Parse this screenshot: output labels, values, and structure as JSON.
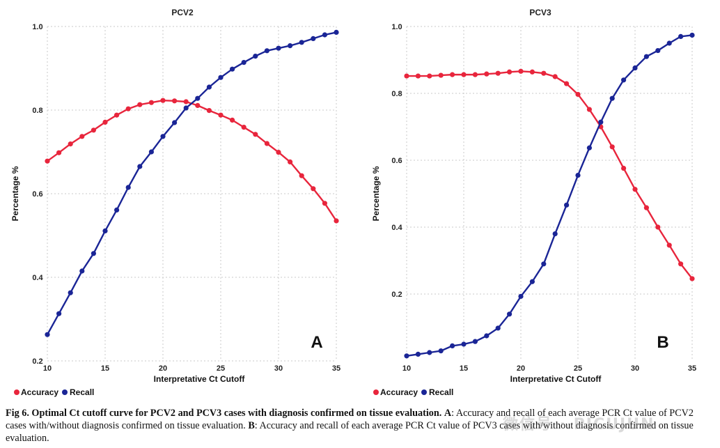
{
  "colors": {
    "accuracy": "#e8253c",
    "recall": "#1a2596"
  },
  "chart_data": [
    {
      "type": "line",
      "panel": "A",
      "title": "PCV2",
      "xlabel": "Interpretative Ct Cutoff",
      "ylabel": "Percentage %",
      "xlim": [
        10,
        35
      ],
      "ylim": [
        0.2,
        1.0
      ],
      "xticks": [
        10,
        15,
        20,
        25,
        30,
        35
      ],
      "yticks": [
        0.2,
        0.4,
        0.6,
        0.8,
        1.0
      ],
      "ytick_labels": [
        "0.2",
        "0.4",
        "0.6",
        "0.8",
        "1.0"
      ],
      "x": [
        10,
        11,
        12,
        13,
        14,
        15,
        16,
        17,
        18,
        19,
        20,
        21,
        22,
        23,
        24,
        25,
        26,
        27,
        28,
        29,
        30,
        31,
        32,
        33,
        34,
        35
      ],
      "series": [
        {
          "name": "Accuracy",
          "values": [
            0.678,
            0.698,
            0.719,
            0.737,
            0.752,
            0.771,
            0.788,
            0.803,
            0.813,
            0.818,
            0.823,
            0.822,
            0.82,
            0.811,
            0.799,
            0.788,
            0.776,
            0.759,
            0.742,
            0.72,
            0.699,
            0.676,
            0.643,
            0.612,
            0.577,
            0.535
          ]
        },
        {
          "name": "Recall",
          "values": [
            0.263,
            0.313,
            0.363,
            0.415,
            0.457,
            0.511,
            0.561,
            0.615,
            0.665,
            0.7,
            0.737,
            0.77,
            0.805,
            0.828,
            0.855,
            0.878,
            0.898,
            0.914,
            0.929,
            0.942,
            0.948,
            0.954,
            0.962,
            0.971,
            0.98,
            0.986
          ]
        }
      ],
      "legend": [
        "Accuracy",
        "Recall"
      ],
      "legend_position": "bottom-left"
    },
    {
      "type": "line",
      "panel": "B",
      "title": "PCV3",
      "xlabel": "Interpretative Ct Cutoff",
      "ylabel": "Percentage %",
      "xlim": [
        10,
        35
      ],
      "ylim": [
        0.0,
        1.0
      ],
      "xticks": [
        10,
        15,
        20,
        25,
        30,
        35
      ],
      "yticks": [
        0.2,
        0.4,
        0.6,
        0.8,
        1.0
      ],
      "ytick_labels": [
        "0.2",
        "0.4",
        "0.6",
        "0.8",
        "1.0"
      ],
      "x": [
        10,
        11,
        12,
        13,
        14,
        15,
        16,
        17,
        18,
        19,
        20,
        21,
        22,
        23,
        24,
        25,
        26,
        27,
        28,
        29,
        30,
        31,
        32,
        33,
        34,
        35
      ],
      "series": [
        {
          "name": "Accuracy",
          "values": [
            0.852,
            0.852,
            0.852,
            0.854,
            0.856,
            0.856,
            0.856,
            0.858,
            0.86,
            0.864,
            0.866,
            0.864,
            0.86,
            0.85,
            0.829,
            0.797,
            0.752,
            0.7,
            0.64,
            0.576,
            0.513,
            0.458,
            0.4,
            0.346,
            0.29,
            0.246
          ]
        },
        {
          "name": "Recall",
          "values": [
            0.015,
            0.02,
            0.025,
            0.03,
            0.045,
            0.05,
            0.058,
            0.075,
            0.098,
            0.14,
            0.193,
            0.237,
            0.29,
            0.38,
            0.466,
            0.555,
            0.637,
            0.714,
            0.785,
            0.84,
            0.876,
            0.91,
            0.928,
            0.95,
            0.97,
            0.974
          ]
        }
      ],
      "legend": [
        "Accuracy",
        "Recall"
      ],
      "legend_position": "bottom-left"
    }
  ],
  "caption": {
    "bold": "Fig 6. Optimal Ct cutoff curve for PCV2 and PCV3 cases with diagnosis confirmed on tissue evaluation.",
    "a_label": "A",
    "a_text": ": Accuracy and recall of each average PCR Ct value of PCV2 cases with/without diagnosis confirmed on tissue evaluation. ",
    "b_label": "B",
    "b_text": ": Accuracy and recall of each average PCR Ct value of PCV3 cases with/without diagnosis confirmed on tissue evaluation."
  },
  "watermark": "微信号 · PICUJUN"
}
